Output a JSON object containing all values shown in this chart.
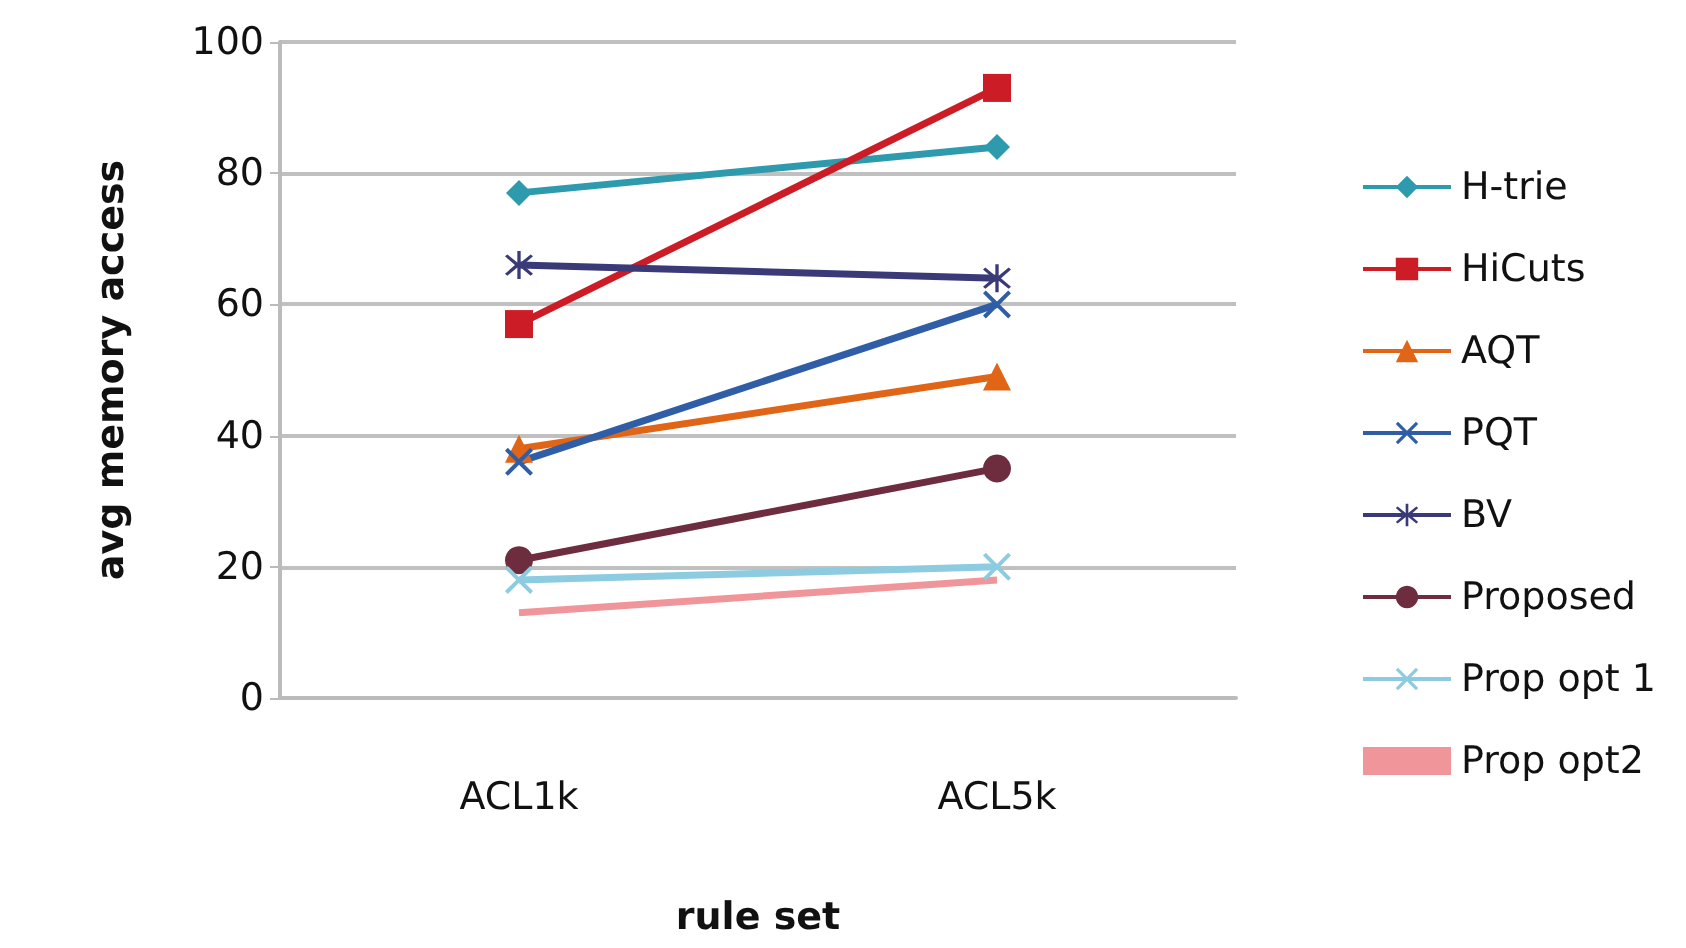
{
  "chart_data": {
    "type": "line",
    "xlabel": "rule set",
    "ylabel": "avg memory access",
    "categories": [
      "ACL1k",
      "ACL5k"
    ],
    "ylim": [
      0,
      100
    ],
    "yticks": [
      0,
      20,
      40,
      60,
      80,
      100
    ],
    "grid": "y",
    "legend": "right",
    "series": [
      {
        "name": "H-trie",
        "color": "#2e9aad",
        "marker": "diamond",
        "values": [
          77,
          84
        ]
      },
      {
        "name": "HiCuts",
        "color": "#cc1d26",
        "marker": "square",
        "values": [
          57,
          93
        ]
      },
      {
        "name": "AQT",
        "color": "#e06517",
        "marker": "triangle",
        "values": [
          38,
          49
        ]
      },
      {
        "name": "PQT",
        "color": "#2f5ea6",
        "marker": "cross",
        "values": [
          36,
          60
        ]
      },
      {
        "name": "BV",
        "color": "#3a3a78",
        "marker": "star",
        "values": [
          66,
          64
        ]
      },
      {
        "name": "Proposed",
        "color": "#6e2d3e",
        "marker": "circle",
        "values": [
          21,
          35
        ]
      },
      {
        "name": "Prop opt 1",
        "color": "#8ccbe0",
        "marker": "cross",
        "values": [
          18,
          20
        ]
      },
      {
        "name": "Prop opt2",
        "color": "#f0959a",
        "marker": "none",
        "values": [
          13,
          18
        ]
      }
    ]
  }
}
